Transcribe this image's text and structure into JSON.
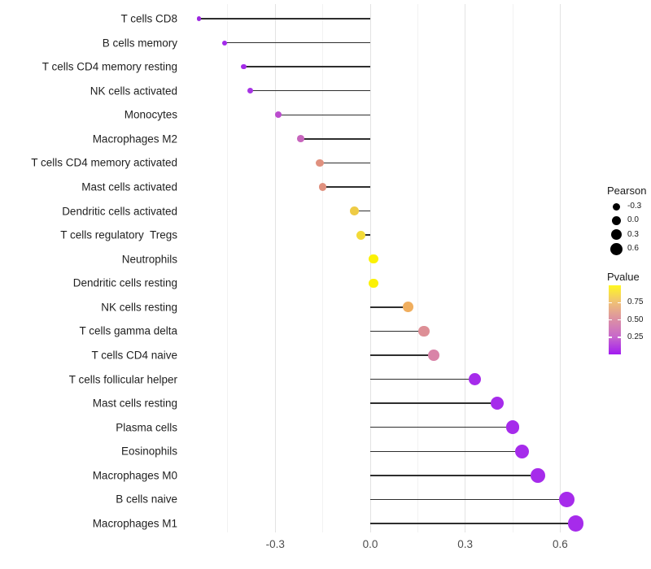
{
  "chart_data": {
    "type": "lollipop",
    "title": "",
    "xlabel": "",
    "ylabel": "",
    "xlim": [
      -0.59,
      0.72
    ],
    "x_major_ticks": [
      -0.3,
      0.0,
      0.3,
      0.6
    ],
    "x_minor_ticks": [
      -0.45,
      -0.15,
      0.15,
      0.45
    ],
    "x_tick_labels": [
      "-0.3",
      "0.0",
      "0.3",
      "0.6"
    ],
    "grid": "vertical-only",
    "legend_position": "right",
    "points": [
      {
        "label": "T cells CD8",
        "pearson": -0.54,
        "pvalue": 0.02,
        "color": "#9c27e0"
      },
      {
        "label": "B cells memory",
        "pearson": -0.46,
        "pvalue": 0.03,
        "color": "#a229ea"
      },
      {
        "label": "T cells CD4 memory resting",
        "pearson": -0.4,
        "pvalue": 0.05,
        "color": "#a32be8"
      },
      {
        "label": "NK cells activated",
        "pearson": -0.38,
        "pvalue": 0.07,
        "color": "#a734e4"
      },
      {
        "label": "Monocytes",
        "pearson": -0.29,
        "pvalue": 0.2,
        "color": "#bb4cce"
      },
      {
        "label": "Macrophages M2",
        "pearson": -0.22,
        "pvalue": 0.3,
        "color": "#c765bd"
      },
      {
        "label": "T cells CD4 memory activated",
        "pearson": -0.16,
        "pvalue": 0.55,
        "color": "#e0917f"
      },
      {
        "label": "Mast cells activated",
        "pearson": -0.15,
        "pvalue": 0.55,
        "color": "#e0917f"
      },
      {
        "label": "Dendritic cells activated",
        "pearson": -0.05,
        "pvalue": 0.85,
        "color": "#eecb45"
      },
      {
        "label": "T cells regulatory  Tregs",
        "pearson": -0.03,
        "pvalue": 0.9,
        "color": "#f3da38"
      },
      {
        "label": "Neutrophils",
        "pearson": 0.01,
        "pvalue": 0.97,
        "color": "#fbf105"
      },
      {
        "label": "Dendritic cells resting",
        "pearson": 0.01,
        "pvalue": 0.97,
        "color": "#fbf105"
      },
      {
        "label": "NK cells resting",
        "pearson": 0.12,
        "pvalue": 0.68,
        "color": "#f0ae5e"
      },
      {
        "label": "T cells gamma delta",
        "pearson": 0.17,
        "pvalue": 0.5,
        "color": "#dd8f96"
      },
      {
        "label": "T cells CD4 naive",
        "pearson": 0.2,
        "pvalue": 0.42,
        "color": "#d983a8"
      },
      {
        "label": "T cells follicular helper",
        "pearson": 0.33,
        "pvalue": 0.02,
        "color": "#a62beb"
      },
      {
        "label": "Mast cells resting",
        "pearson": 0.4,
        "pvalue": 0.02,
        "color": "#a62beb"
      },
      {
        "label": "Plasma cells",
        "pearson": 0.45,
        "pvalue": 0.01,
        "color": "#a62beb"
      },
      {
        "label": "Eosinophils",
        "pearson": 0.48,
        "pvalue": 0.01,
        "color": "#a62beb"
      },
      {
        "label": "Macrophages M0",
        "pearson": 0.53,
        "pvalue": 0.01,
        "color": "#a62beb"
      },
      {
        "label": "B cells naive",
        "pearson": 0.62,
        "pvalue": 0.01,
        "color": "#a62beb"
      },
      {
        "label": "Macrophages M1",
        "pearson": 0.65,
        "pvalue": 0.01,
        "color": "#a62beb"
      }
    ]
  },
  "legend": {
    "pearson": {
      "title": "Pearson",
      "sizes": [
        {
          "label": "-0.3",
          "r": 4.5
        },
        {
          "label": "0.0",
          "r": 5.5
        },
        {
          "label": "0.3",
          "r": 6.5
        },
        {
          "label": "0.6",
          "r": 7.5
        }
      ]
    },
    "pvalue": {
      "title": "Pvalue",
      "ticks": [
        {
          "label": "0.75",
          "value": 0.75
        },
        {
          "label": "0.50",
          "value": 0.5
        },
        {
          "label": "0.25",
          "value": 0.25
        }
      ],
      "gradient_bottom_to_top": [
        "#a21bf0",
        "#c767cc",
        "#db8fa5",
        "#efbf77",
        "#fff721"
      ]
    }
  },
  "colors": {
    "stem": "#2e2e2e",
    "grid_major": "#e3e3e3",
    "grid_minor": "#f2f2f2",
    "axis_text": "#4d4d4d",
    "label_text": "#1f1f1f",
    "legend_dot": "#000000"
  }
}
